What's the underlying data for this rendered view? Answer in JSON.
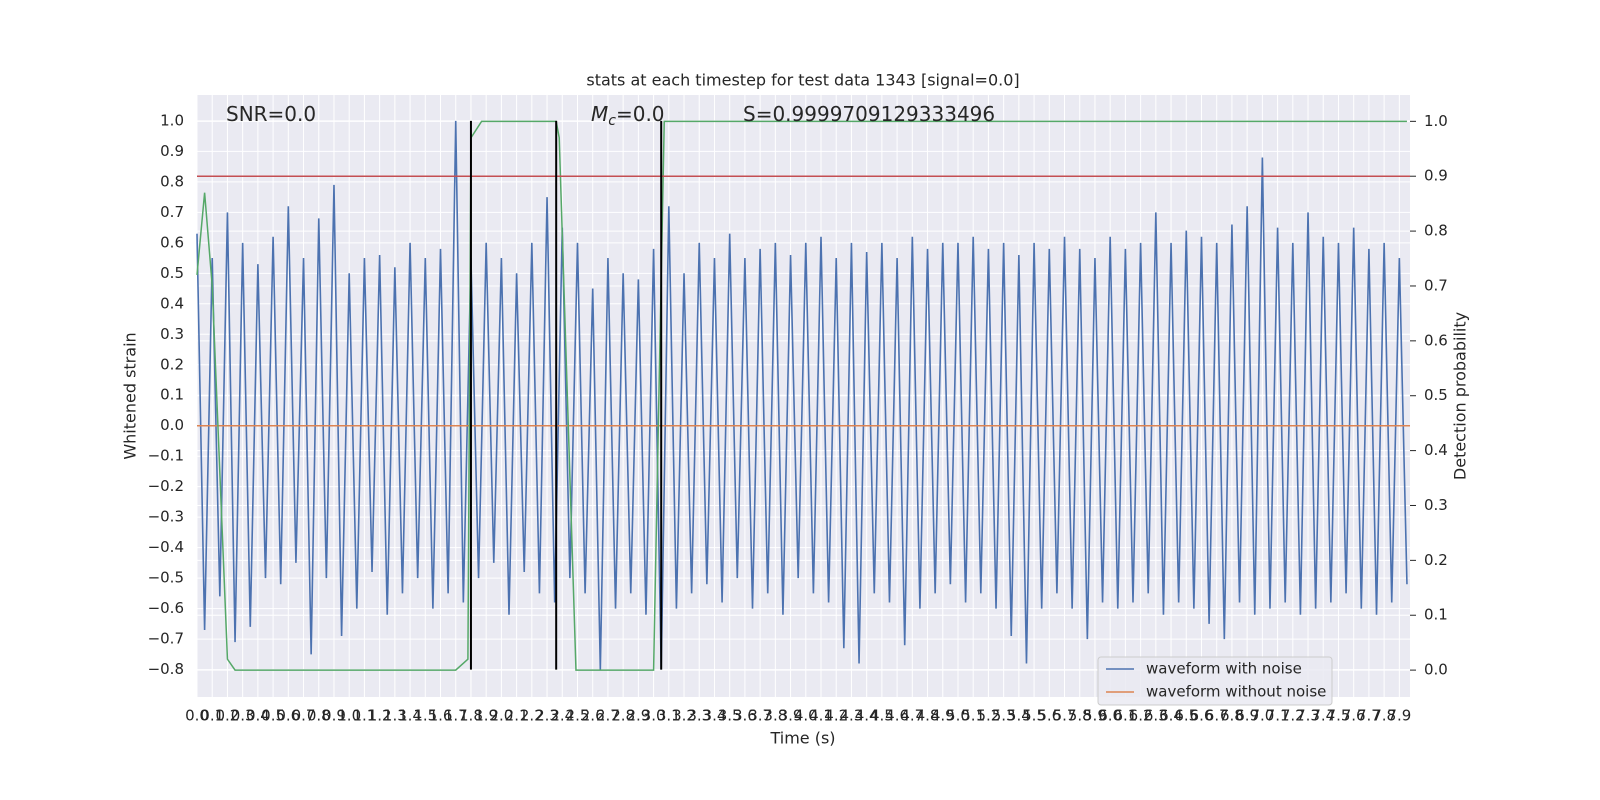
{
  "chart_data": {
    "type": "line",
    "title": "stats at each timestep for test data 1343 [signal=0.0]",
    "xlabel": "Time (s)",
    "ylabel": "Whitened strain",
    "y2label": "Detection probability",
    "annotations": [
      {
        "text": "SNR=0.0"
      },
      {
        "text": "M",
        "sub": "c",
        "rest": "=0.0"
      },
      {
        "text": "S=0.9999709129333496"
      }
    ],
    "xlim": [
      0,
      7.97
    ],
    "ylim": [
      -0.89,
      1.085
    ],
    "y2lim": [
      -0.049,
      1.048
    ],
    "grid": true,
    "legend": "lower right",
    "xticks": [
      {
        "value": 0,
        "label": "0.0"
      },
      0.1,
      0.2,
      0.3,
      0.4,
      0.5,
      0.6,
      0.7,
      0.8,
      0.9,
      {
        "value": 1,
        "label": "1.0"
      },
      1.1,
      1.2,
      1.3,
      1.4,
      1.5,
      1.6,
      1.7,
      1.8,
      1.9,
      {
        "value": 2,
        "label": "2.0"
      },
      2.1,
      2.2,
      2.3,
      2.4,
      2.5,
      2.6,
      2.7,
      2.8,
      2.9,
      {
        "value": 3,
        "label": "3.0"
      },
      3.1,
      3.2,
      3.3,
      3.4,
      3.5,
      3.6,
      3.7,
      3.8,
      3.9,
      {
        "value": 4,
        "label": "4.0"
      },
      4.1,
      4.2,
      4.3,
      4.4,
      4.5,
      4.6,
      4.7,
      4.8,
      4.9,
      {
        "value": 5,
        "label": "5.0"
      },
      5.1,
      5.2,
      5.3,
      5.4,
      5.5,
      5.6,
      5.7,
      5.8,
      5.9,
      {
        "value": 6,
        "label": "6.0"
      },
      6.1,
      6.2,
      6.3,
      6.4,
      6.5,
      6.6,
      6.7,
      6.8,
      6.9,
      {
        "value": 7,
        "label": "7.0"
      },
      7.1,
      7.2,
      7.3,
      7.4,
      7.5,
      7.6,
      7.7,
      7.8,
      7.9
    ],
    "yticks": [
      {
        "value": -0.8,
        "label": "−0.8"
      },
      {
        "value": -0.7,
        "label": "−0.7"
      },
      {
        "value": -0.6,
        "label": "−0.6"
      },
      {
        "value": -0.5,
        "label": "−0.5"
      },
      {
        "value": -0.4,
        "label": "−0.4"
      },
      {
        "value": -0.3,
        "label": "−0.3"
      },
      {
        "value": -0.2,
        "label": "−0.2"
      },
      {
        "value": -0.1,
        "label": "−0.1"
      },
      {
        "value": 0,
        "label": "0.0"
      },
      0.1,
      0.2,
      0.3,
      0.4,
      0.5,
      0.6,
      0.7,
      0.8,
      0.9,
      {
        "value": 1,
        "label": "1.0"
      }
    ],
    "y2ticks": [
      {
        "value": 0,
        "label": "0.0"
      },
      0.1,
      0.2,
      0.3,
      0.4,
      0.5,
      0.6,
      0.7,
      0.8,
      0.9,
      {
        "value": 1,
        "label": "1.0"
      }
    ],
    "series": [
      {
        "name": "waveform with noise",
        "color": "#4c72b0",
        "x": [
          0,
          0.05,
          0.1,
          0.15,
          0.2,
          0.25,
          0.3,
          0.35,
          0.4,
          0.45,
          0.5,
          0.55,
          0.6,
          0.65,
          0.7,
          0.75,
          0.8,
          0.85,
          0.9,
          0.95,
          1,
          1.05,
          1.1,
          1.15,
          1.2,
          1.25,
          1.3,
          1.35,
          1.4,
          1.45,
          1.5,
          1.55,
          1.6,
          1.65,
          1.7,
          1.75,
          1.8,
          1.85,
          1.9,
          1.95,
          2,
          2.05,
          2.1,
          2.15,
          2.2,
          2.25,
          2.3,
          2.35,
          2.4,
          2.45,
          2.5,
          2.55,
          2.6,
          2.65,
          2.7,
          2.75,
          2.8,
          2.85,
          2.9,
          2.95,
          3,
          3.05,
          3.1,
          3.15,
          3.2,
          3.25,
          3.3,
          3.35,
          3.4,
          3.45,
          3.5,
          3.55,
          3.6,
          3.65,
          3.7,
          3.75,
          3.8,
          3.85,
          3.9,
          3.95,
          4,
          4.05,
          4.1,
          4.15,
          4.2,
          4.25,
          4.3,
          4.35,
          4.4,
          4.45,
          4.5,
          4.55,
          4.6,
          4.65,
          4.7,
          4.75,
          4.8,
          4.85,
          4.9,
          4.95,
          5,
          5.05,
          5.1,
          5.15,
          5.2,
          5.25,
          5.3,
          5.35,
          5.4,
          5.45,
          5.5,
          5.55,
          5.6,
          5.65,
          5.7,
          5.75,
          5.8,
          5.85,
          5.9,
          5.95,
          6,
          6.05,
          6.1,
          6.15,
          6.2,
          6.25,
          6.3,
          6.35,
          6.4,
          6.45,
          6.5,
          6.55,
          6.6,
          6.65,
          6.7,
          6.75,
          6.8,
          6.85,
          6.9,
          6.95,
          7,
          7.05,
          7.1,
          7.15,
          7.2,
          7.25,
          7.3,
          7.35,
          7.4,
          7.45,
          7.5,
          7.55,
          7.6,
          7.65,
          7.7,
          7.75,
          7.8,
          7.85,
          7.9,
          7.95
        ],
        "values": [
          0.63,
          -0.67,
          0.55,
          -0.56,
          0.7,
          -0.71,
          0.6,
          -0.66,
          0.53,
          -0.5,
          0.62,
          -0.52,
          0.72,
          -0.45,
          0.55,
          -0.75,
          0.68,
          -0.5,
          0.79,
          -0.69,
          0.5,
          -0.6,
          0.55,
          -0.48,
          0.56,
          -0.62,
          0.52,
          -0.55,
          0.6,
          -0.5,
          0.55,
          -0.6,
          0.58,
          -0.55,
          1.0,
          -0.58,
          0.55,
          -0.5,
          0.6,
          -0.45,
          0.55,
          -0.62,
          0.5,
          -0.48,
          0.6,
          -0.55,
          0.75,
          -0.58,
          0.65,
          -0.5,
          0.6,
          -0.55,
          0.45,
          -0.8,
          0.55,
          -0.6,
          0.5,
          -0.55,
          0.48,
          -0.62,
          0.58,
          -0.8,
          0.72,
          -0.6,
          0.5,
          -0.55,
          0.6,
          -0.52,
          0.55,
          -0.58,
          0.63,
          -0.5,
          0.55,
          -0.6,
          0.58,
          -0.55,
          0.6,
          -0.62,
          0.56,
          -0.5,
          0.6,
          -0.55,
          0.62,
          -0.58,
          0.55,
          -0.73,
          0.6,
          -0.78,
          0.57,
          -0.55,
          0.6,
          -0.58,
          0.55,
          -0.72,
          0.62,
          -0.6,
          0.58,
          -0.55,
          0.6,
          -0.52,
          0.6,
          -0.58,
          0.62,
          -0.55,
          0.58,
          -0.6,
          0.6,
          -0.69,
          0.56,
          -0.78,
          0.6,
          -0.6,
          0.58,
          -0.55,
          0.62,
          -0.6,
          0.58,
          -0.7,
          0.55,
          -0.58,
          0.62,
          -0.6,
          0.58,
          -0.58,
          0.6,
          -0.55,
          0.7,
          -0.62,
          0.6,
          -0.58,
          0.64,
          -0.6,
          0.62,
          -0.65,
          0.6,
          -0.7,
          0.66,
          -0.58,
          0.72,
          -0.62,
          0.88,
          -0.6,
          0.65,
          -0.58,
          0.6,
          -0.62,
          0.7,
          -0.6,
          0.62,
          -0.58,
          0.6,
          -0.55,
          0.65,
          -0.6,
          0.58,
          -0.62,
          0.6,
          -0.58,
          0.55,
          -0.52
        ]
      },
      {
        "name": "waveform without noise",
        "color": "#dd8452",
        "x": [
          0,
          7.97
        ],
        "values": [
          0,
          0
        ]
      },
      {
        "color": "#55a868",
        "axis": "y2",
        "x": [
          0,
          0.05,
          0.1,
          0.2,
          0.25,
          1.7,
          1.78,
          1.8,
          1.87,
          2.36,
          2.38,
          2.49,
          2.95,
          3.0,
          3.07,
          7.95
        ],
        "values": [
          0.72,
          0.87,
          0.7,
          0.02,
          0,
          0,
          0.02,
          0.97,
          1,
          1,
          0.97,
          0,
          0,
          0,
          1,
          1
        ]
      }
    ],
    "threshold": {
      "axis": "y2",
      "value": 0.9,
      "color": "#c44e52"
    },
    "vlines": {
      "color": "#000000",
      "x": [
        1.8,
        2.36,
        3.05
      ],
      "ymin": -0.8,
      "ymax": 1.0
    }
  }
}
